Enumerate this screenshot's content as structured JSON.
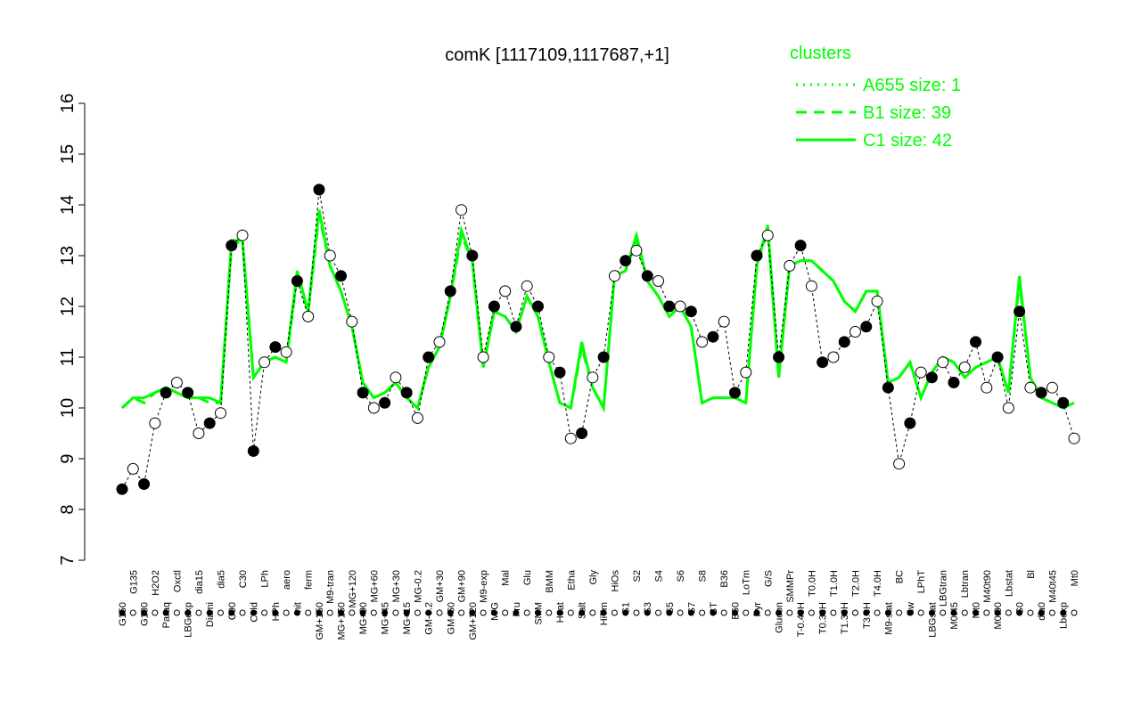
{
  "chart_data": {
    "type": "line",
    "title": "comK [1117109,1117687,+1]",
    "legend_title": "clusters",
    "legend_position": "top-right",
    "ylim": [
      7,
      16
    ],
    "yticks": [
      7,
      8,
      9,
      10,
      11,
      12,
      13,
      14,
      15,
      16
    ],
    "point_color": "#000000",
    "categories": [
      "G150",
      "G135",
      "G180",
      "H2O2",
      "Paraq",
      "Oxctl",
      "LBGexp",
      "dia15",
      "Diami",
      "dia5",
      "C90",
      "C30",
      "Cold",
      "LPh",
      "HPh",
      "aero",
      "nit",
      "ferm",
      "GM+150",
      "M9-tran",
      "MG+150",
      "MG+120",
      "MG+90",
      "MG+60",
      "MG+45",
      "MG+30",
      "MG+15",
      "MG-0.2",
      "GM-0.2",
      "GM+30",
      "GM+60",
      "GM+90",
      "GM+120",
      "M9-exp",
      "M/G",
      "Mal",
      "Fru",
      "Glu",
      "SMM",
      "BMM",
      "Heat",
      "Etha",
      "Salt",
      "Gly",
      "HiTm",
      "HiOs",
      "S1",
      "S2",
      "S3",
      "S4",
      "S5",
      "S6",
      "S7",
      "S8",
      "BT",
      "B36",
      "B60",
      "LoTm",
      "Pyr",
      "G/S",
      "Glucon",
      "SMMPr",
      "T-0.40H",
      "T0.0H",
      "T0.30H",
      "T1.0H",
      "T1.30H",
      "T2.0H",
      "T3.0H",
      "T4.0H",
      "M9-stat",
      "BC",
      "Sw",
      "LPhT",
      "LBGstat",
      "LBGtran",
      "M0t45",
      "Lbtran",
      "Mt0",
      "M40t90",
      "M0t90",
      "Lbstat",
      "S0",
      "Bl",
      "dia0",
      "M40t45",
      "Lbexp",
      "Mt0"
    ],
    "values": [
      8.4,
      8.8,
      8.5,
      9.7,
      10.3,
      10.5,
      10.3,
      9.5,
      9.7,
      9.9,
      13.2,
      13.4,
      9.15,
      10.9,
      11.2,
      11.1,
      12.5,
      11.8,
      14.3,
      13.0,
      12.6,
      11.7,
      10.3,
      10.0,
      10.1,
      10.6,
      10.3,
      9.8,
      11.0,
      11.3,
      12.3,
      13.9,
      13.0,
      11.0,
      12.0,
      12.3,
      11.6,
      12.4,
      12.0,
      11.0,
      10.7,
      9.4,
      9.5,
      10.6,
      11.0,
      12.6,
      12.9,
      13.1,
      12.6,
      12.5,
      12.0,
      12.0,
      11.9,
      11.3,
      11.4,
      11.7,
      10.3,
      10.7,
      13.0,
      13.4,
      11.0,
      12.8,
      13.2,
      12.4,
      10.9,
      11.0,
      11.3,
      11.5,
      11.6,
      12.1,
      10.4,
      8.9,
      9.7,
      10.7,
      10.6,
      10.9,
      10.5,
      10.8,
      11.3,
      10.4,
      11.0,
      10.0,
      11.9,
      10.4,
      10.3,
      10.4,
      10.1,
      9.4
    ],
    "series": [
      {
        "name": "A655 size: 1",
        "color": "#00ff00",
        "style": "dotted",
        "values": [
          null,
          null,
          null,
          null,
          null,
          null,
          null,
          null,
          null,
          null,
          null,
          null,
          null,
          null,
          null,
          null,
          null,
          null,
          null,
          null,
          null,
          null,
          null,
          null,
          null,
          null,
          null,
          null,
          null,
          null,
          null,
          null,
          null,
          null,
          null,
          null,
          null,
          null,
          null,
          null,
          null,
          null,
          null,
          null,
          null,
          null,
          null,
          null,
          null,
          null,
          null,
          null,
          null,
          null,
          null,
          null,
          null,
          null,
          null,
          null,
          null,
          null,
          null,
          null,
          null,
          null,
          null,
          null,
          null,
          null,
          null,
          null,
          null,
          null,
          null,
          null,
          null,
          null,
          null,
          null,
          null,
          null,
          null,
          null,
          null,
          null,
          null,
          null
        ]
      },
      {
        "name": "B1 size: 39",
        "color": "#00ff00",
        "style": "dashed",
        "values": [
          10.0,
          10.2,
          10.1,
          10.3,
          10.4,
          10.3,
          10.2,
          10.2,
          10.1,
          10.1,
          13.2,
          13.3,
          10.6,
          10.9,
          11.0,
          10.9,
          12.6,
          11.9,
          13.8,
          12.8,
          12.3,
          11.6,
          10.5,
          10.2,
          10.3,
          10.5,
          10.2,
          10.0,
          10.8,
          11.2,
          12.2,
          13.4,
          12.9,
          10.8,
          11.9,
          11.8,
          11.5,
          12.2,
          11.8,
          10.9,
          10.1,
          10.0,
          11.2,
          10.4,
          10.0,
          12.6,
          12.7,
          13.3,
          12.5,
          12.2,
          11.8,
          12.0,
          11.6,
          10.1,
          10.2,
          10.2,
          10.2,
          10.1,
          12.8,
          13.5,
          10.6,
          12.8,
          12.9,
          12.9,
          12.7,
          12.5,
          12.1,
          11.9,
          12.3,
          12.3,
          10.5,
          10.6,
          10.9,
          10.2,
          10.7,
          11.0,
          10.9,
          10.6,
          10.8,
          10.9,
          11.0,
          10.3,
          12.5,
          10.6,
          10.2,
          10.1,
          10.0,
          10.1
        ]
      },
      {
        "name": "C1 size: 42",
        "color": "#00ff00",
        "style": "solid",
        "values": [
          10.0,
          10.2,
          10.2,
          10.3,
          10.4,
          10.3,
          10.2,
          10.2,
          10.2,
          10.1,
          13.3,
          13.3,
          10.6,
          10.9,
          11.0,
          10.9,
          12.7,
          11.9,
          13.9,
          12.8,
          12.3,
          11.6,
          10.5,
          10.2,
          10.3,
          10.5,
          10.2,
          10.0,
          10.8,
          11.2,
          12.2,
          13.5,
          12.9,
          10.8,
          11.9,
          11.8,
          11.5,
          12.2,
          11.8,
          10.9,
          10.1,
          10.0,
          11.3,
          10.4,
          10.0,
          12.6,
          12.7,
          13.4,
          12.5,
          12.2,
          11.8,
          12.0,
          11.6,
          10.1,
          10.2,
          10.2,
          10.2,
          10.1,
          12.8,
          13.6,
          10.6,
          12.8,
          12.9,
          12.9,
          12.7,
          12.5,
          12.1,
          11.9,
          12.3,
          12.3,
          10.5,
          10.6,
          10.9,
          10.2,
          10.7,
          11.0,
          10.9,
          10.6,
          10.8,
          10.9,
          11.0,
          10.3,
          12.6,
          10.6,
          10.2,
          10.1,
          10.0,
          10.1
        ]
      }
    ]
  }
}
